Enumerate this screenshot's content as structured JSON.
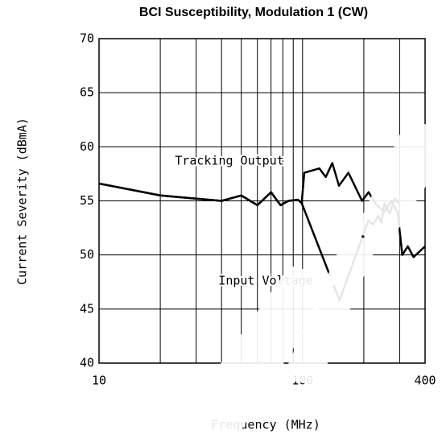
{
  "chart_data": {
    "type": "line",
    "title": "BCI Susceptibility, Modulation 1 (CW)",
    "xlabel": "Frequency (MHz)",
    "ylabel": "Current Severity (dBmA)",
    "xscale": "log",
    "xlim": [
      10,
      400
    ],
    "xticks": [
      10,
      100,
      400
    ],
    "xminorticks": [
      20,
      30,
      40,
      50,
      60,
      70,
      80,
      90,
      200,
      300
    ],
    "ylim": [
      40,
      70
    ],
    "yticks": [
      40,
      45,
      50,
      55,
      60,
      65,
      70
    ],
    "grid": true,
    "series": [
      {
        "name": "Tracking Output",
        "color": "#000000",
        "x": [
          10,
          20,
          40,
          50,
          60,
          70,
          78,
          85,
          95,
          99,
          102,
          121,
          130,
          140,
          151,
          168,
          196,
          211,
          231,
          253,
          272,
          293,
          309,
          329,
          351,
          400
        ],
        "values": [
          56.6,
          55.5,
          55.0,
          55.5,
          54.6,
          55.8,
          54.6,
          55.0,
          55.1,
          54.8,
          57.6,
          58.0,
          57.2,
          58.5,
          56.4,
          57.6,
          55.0,
          55.8,
          54.6,
          54.0,
          55.0,
          54.0,
          50.0,
          50.8,
          49.8,
          50.8
        ]
      },
      {
        "name": "Input Voltage",
        "color": "#000000",
        "x": [
          10,
          20,
          40,
          50,
          60,
          70,
          78,
          85,
          95,
          99,
          152,
          200,
          211,
          222,
          235,
          244,
          253,
          268,
          283,
          297
        ],
        "values": [
          56.6,
          55.5,
          55.0,
          55.5,
          54.6,
          55.8,
          54.6,
          55.0,
          55.1,
          54.8,
          45.8,
          52.0,
          53.2,
          52.8,
          53.6,
          53.0,
          54.8,
          53.8,
          55.2,
          54.8
        ]
      }
    ]
  }
}
